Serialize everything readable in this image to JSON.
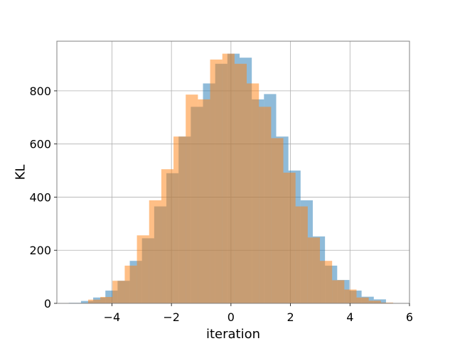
{
  "chart_data": {
    "type": "bar",
    "title": "",
    "xlabel": "iteration",
    "ylabel": "KL",
    "xlim": [
      -5.85,
      6.0
    ],
    "ylim": [
      0,
      987
    ],
    "grid": true,
    "xticks": [
      -4,
      -2,
      0,
      2,
      4,
      6
    ],
    "yticks": [
      0,
      200,
      400,
      600,
      800
    ],
    "xtick_labels": [
      "−4",
      "−2",
      "0",
      "2",
      "4",
      "6"
    ],
    "ytick_labels": [
      "0",
      "200",
      "400",
      "600",
      "800"
    ],
    "series": [
      {
        "color": "#1f77b4",
        "opacity": 0.5,
        "bins": [
          {
            "x0": -5.45,
            "x1": -5.04,
            "v": 2
          },
          {
            "x0": -5.04,
            "x1": -4.63,
            "v": 9
          },
          {
            "x0": -4.63,
            "x1": -4.22,
            "v": 22
          },
          {
            "x0": -4.22,
            "x1": -3.81,
            "v": 48
          },
          {
            "x0": -3.81,
            "x1": -3.4,
            "v": 85
          },
          {
            "x0": -3.4,
            "x1": -2.99,
            "v": 160
          },
          {
            "x0": -2.99,
            "x1": -2.58,
            "v": 245
          },
          {
            "x0": -2.58,
            "x1": -2.17,
            "v": 365
          },
          {
            "x0": -2.17,
            "x1": -1.76,
            "v": 490
          },
          {
            "x0": -1.76,
            "x1": -1.35,
            "v": 628
          },
          {
            "x0": -1.35,
            "x1": -0.94,
            "v": 740
          },
          {
            "x0": -0.94,
            "x1": -0.53,
            "v": 828
          },
          {
            "x0": -0.53,
            "x1": -0.12,
            "v": 902
          },
          {
            "x0": -0.12,
            "x1": 0.29,
            "v": 940
          },
          {
            "x0": 0.29,
            "x1": 0.7,
            "v": 925
          },
          {
            "x0": 0.7,
            "x1": 1.11,
            "v": 768
          },
          {
            "x0": 1.11,
            "x1": 1.52,
            "v": 788
          },
          {
            "x0": 1.52,
            "x1": 1.93,
            "v": 628
          },
          {
            "x0": 1.93,
            "x1": 2.34,
            "v": 500
          },
          {
            "x0": 2.34,
            "x1": 2.75,
            "v": 388
          },
          {
            "x0": 2.75,
            "x1": 3.16,
            "v": 252
          },
          {
            "x0": 3.16,
            "x1": 3.57,
            "v": 142
          },
          {
            "x0": 3.57,
            "x1": 3.98,
            "v": 88
          },
          {
            "x0": 3.98,
            "x1": 4.39,
            "v": 48
          },
          {
            "x0": 4.39,
            "x1": 4.8,
            "v": 25
          },
          {
            "x0": 4.8,
            "x1": 5.21,
            "v": 15
          }
        ]
      },
      {
        "color": "#ff7f0e",
        "opacity": 0.5,
        "bins": [
          {
            "x0": -4.8,
            "x1": -4.39,
            "v": 14
          },
          {
            "x0": -4.39,
            "x1": -3.98,
            "v": 24
          },
          {
            "x0": -3.98,
            "x1": -3.57,
            "v": 85
          },
          {
            "x0": -3.57,
            "x1": -3.16,
            "v": 142
          },
          {
            "x0": -3.16,
            "x1": -2.75,
            "v": 256
          },
          {
            "x0": -2.75,
            "x1": -2.34,
            "v": 388
          },
          {
            "x0": -2.34,
            "x1": -1.93,
            "v": 505
          },
          {
            "x0": -1.93,
            "x1": -1.52,
            "v": 628
          },
          {
            "x0": -1.52,
            "x1": -1.11,
            "v": 786
          },
          {
            "x0": -1.11,
            "x1": -0.7,
            "v": 768
          },
          {
            "x0": -0.7,
            "x1": -0.29,
            "v": 918
          },
          {
            "x0": -0.29,
            "x1": 0.12,
            "v": 940
          },
          {
            "x0": 0.12,
            "x1": 0.53,
            "v": 902
          },
          {
            "x0": 0.53,
            "x1": 0.94,
            "v": 828
          },
          {
            "x0": 0.94,
            "x1": 1.35,
            "v": 740
          },
          {
            "x0": 1.35,
            "x1": 1.76,
            "v": 622
          },
          {
            "x0": 1.76,
            "x1": 2.17,
            "v": 492
          },
          {
            "x0": 2.17,
            "x1": 2.58,
            "v": 365
          },
          {
            "x0": 2.58,
            "x1": 2.99,
            "v": 248
          },
          {
            "x0": 2.99,
            "x1": 3.4,
            "v": 160
          },
          {
            "x0": 3.4,
            "x1": 3.81,
            "v": 87
          },
          {
            "x0": 3.81,
            "x1": 4.22,
            "v": 52
          },
          {
            "x0": 4.22,
            "x1": 4.63,
            "v": 22
          },
          {
            "x0": 4.63,
            "x1": 5.04,
            "v": 10
          },
          {
            "x0": 5.04,
            "x1": 5.45,
            "v": 3
          }
        ]
      }
    ]
  }
}
